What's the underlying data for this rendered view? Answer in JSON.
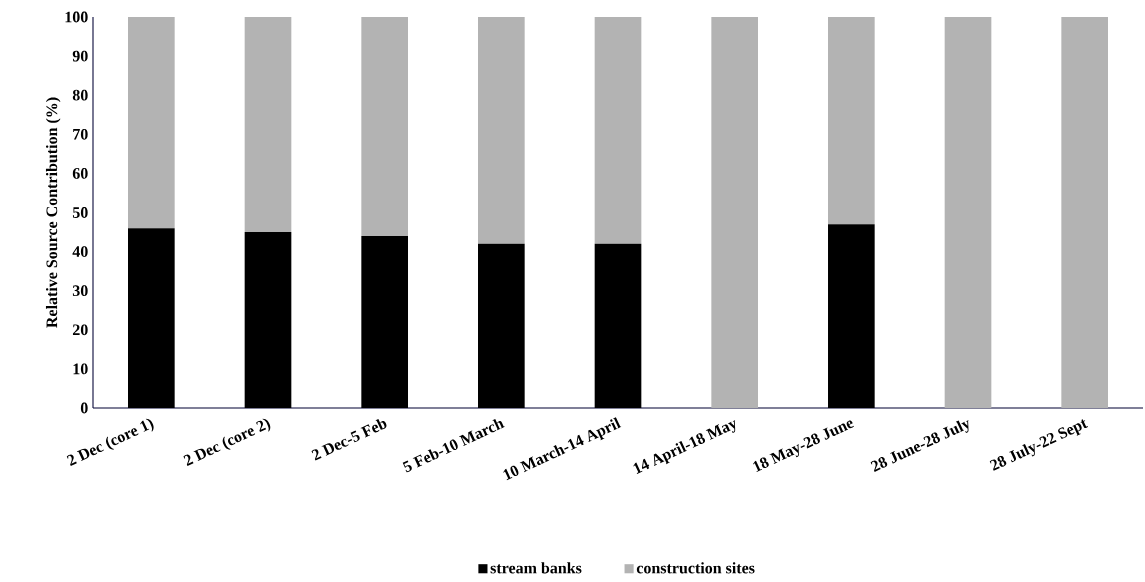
{
  "chart_data": {
    "type": "bar",
    "stacked": true,
    "ylabel": "Relative Source Contribution (%)",
    "categories": [
      "2 Dec (core 1)",
      "2 Dec (core 2)",
      "2 Dec-5 Feb",
      "5 Feb-10 March",
      "10 March-14 April",
      "14 April-18 May",
      "18 May-28 June",
      "28 June-28 July",
      "28 July-22 Sept"
    ],
    "series": [
      {
        "name": "stream banks",
        "color": "#000000",
        "values": [
          46,
          45,
          44,
          42,
          42,
          0,
          47,
          0,
          0
        ]
      },
      {
        "name": "construction sites",
        "color": "#b3b3b3",
        "values": [
          54,
          55,
          56,
          58,
          58,
          100,
          53,
          100,
          100
        ]
      }
    ],
    "ylim": [
      0,
      100
    ],
    "yticks": [
      0,
      10,
      20,
      30,
      40,
      50,
      60,
      70,
      80,
      90,
      100
    ],
    "legend": "bottom"
  }
}
